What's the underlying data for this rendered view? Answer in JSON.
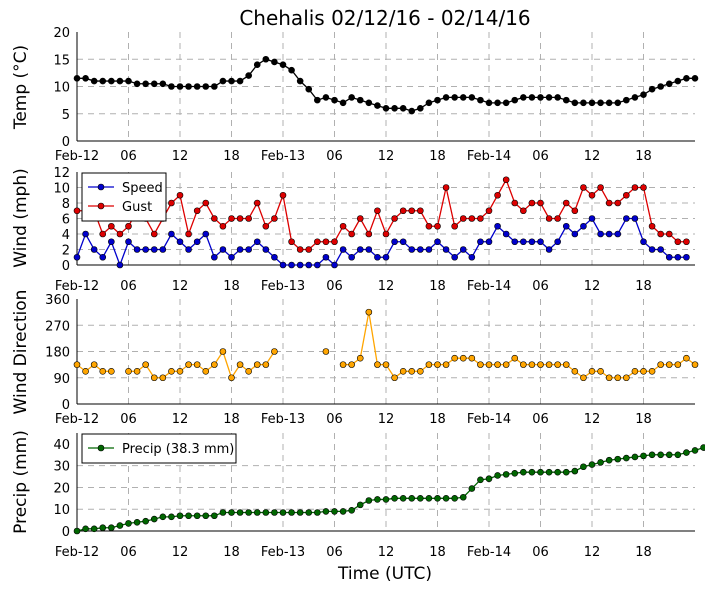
{
  "title": "Chehalis 02/12/16 - 02/14/16",
  "xlabel": "Time (UTC)",
  "x_tick_labels": [
    "Feb-12",
    "06",
    "12",
    "18",
    "Feb-13",
    "06",
    "12",
    "18",
    "Feb-14",
    "06",
    "12",
    "18"
  ],
  "chart_data": [
    {
      "type": "line",
      "ylabel": "Temp (°C)",
      "ylim": [
        0,
        20
      ],
      "yticks": [
        0,
        5,
        10,
        15,
        20
      ],
      "grid": true,
      "color": "#000000",
      "x_unit": "hours since Feb-12 00 UTC",
      "series": [
        {
          "values": [
            11.5,
            11.5,
            11,
            11,
            11,
            11,
            11,
            10.5,
            10.5,
            10.5,
            10.5,
            10,
            10,
            10,
            10,
            10,
            10,
            11,
            11,
            11,
            12,
            14,
            15,
            14.5,
            14,
            13,
            11,
            9.5,
            7.5,
            8,
            7.5,
            7,
            8,
            7.5,
            7,
            6.5,
            6,
            6,
            6,
            5.5,
            6,
            7,
            7.5,
            8,
            8,
            8,
            8,
            7.5,
            7,
            7,
            7,
            7.5,
            8,
            8,
            8,
            8,
            8,
            7.5,
            7,
            7,
            7,
            7,
            7,
            7,
            7.5,
            8,
            8.5,
            9.5,
            10,
            10.5,
            11,
            11.5,
            11.5
          ]
        }
      ]
    },
    {
      "type": "line",
      "ylabel": "Wind (mph)",
      "ylim": [
        0,
        12
      ],
      "yticks": [
        0,
        2,
        4,
        6,
        8,
        10,
        12
      ],
      "grid": true,
      "legend": "top-left",
      "series": [
        {
          "name": "Speed",
          "color": "#0000cc",
          "values": [
            1,
            4,
            2,
            1,
            3,
            0,
            3,
            2,
            2,
            2,
            2,
            4,
            3,
            2,
            3,
            4,
            1,
            2,
            1,
            2,
            2,
            3,
            2,
            1,
            0,
            0,
            0,
            0,
            0,
            1,
            0,
            2,
            1,
            2,
            2,
            1,
            1,
            3,
            3,
            2,
            2,
            2,
            3,
            2,
            1,
            2,
            1,
            3,
            3,
            5,
            4,
            3,
            3,
            3,
            3,
            2,
            3,
            5,
            4,
            5,
            6,
            4,
            4,
            4,
            6,
            6,
            3,
            2,
            2,
            1,
            1,
            1
          ]
        },
        {
          "name": "Gust",
          "color": "#dd0000",
          "values": [
            7,
            7,
            7,
            4,
            5,
            4,
            5,
            7,
            6,
            4,
            6,
            8,
            9,
            4,
            7,
            8,
            6,
            5,
            6,
            6,
            6,
            8,
            5,
            6,
            9,
            3,
            2,
            2,
            3,
            3,
            3,
            5,
            4,
            6,
            4,
            7,
            4,
            6,
            7,
            7,
            7,
            5,
            5,
            10,
            5,
            6,
            6,
            6,
            7,
            9,
            11,
            8,
            7,
            8,
            8,
            6,
            6,
            8,
            7,
            10,
            9,
            10,
            8,
            8,
            9,
            10,
            10,
            5,
            4,
            4,
            3,
            3
          ]
        }
      ]
    },
    {
      "type": "scatter",
      "ylabel": "Wind Direction",
      "ylim": [
        0,
        360
      ],
      "yticks": [
        0,
        90,
        180,
        270,
        360
      ],
      "grid": true,
      "color": "#ffa500",
      "series": [
        {
          "values": [
            135,
            112,
            135,
            112,
            112,
            null,
            112,
            112,
            135,
            90,
            90,
            112,
            112,
            135,
            135,
            112,
            135,
            180,
            90,
            135,
            112,
            135,
            135,
            180,
            null,
            null,
            null,
            null,
            null,
            180,
            null,
            135,
            135,
            157,
            315,
            135,
            135,
            90,
            112,
            112,
            112,
            135,
            135,
            135,
            157,
            157,
            157,
            135,
            135,
            135,
            135,
            157,
            135,
            135,
            135,
            135,
            135,
            135,
            112,
            90,
            112,
            112,
            90,
            90,
            90,
            112,
            112,
            112,
            135,
            135,
            135,
            157,
            135
          ]
        }
      ]
    },
    {
      "type": "line",
      "ylabel": "Precip (mm)",
      "ylim": [
        0,
        45
      ],
      "yticks": [
        0,
        10,
        20,
        30,
        40
      ],
      "grid": true,
      "legend": "top-left",
      "series": [
        {
          "name": "Precip (38.3 mm)",
          "color": "#006600",
          "values": [
            0,
            1,
            1,
            1.5,
            1.5,
            2.5,
            3.5,
            4,
            4.5,
            5.5,
            6.5,
            6.5,
            7,
            7,
            7,
            7,
            7,
            8.5,
            8.5,
            8.5,
            8.5,
            8.5,
            8.5,
            8.5,
            8.5,
            8.5,
            8.5,
            8.5,
            8.5,
            9,
            9,
            9,
            9.5,
            12,
            14,
            14.5,
            14.5,
            15,
            15,
            15,
            15,
            15,
            15,
            15,
            15,
            15.5,
            19.5,
            23.5,
            24,
            25.5,
            26,
            26.5,
            27,
            27,
            27,
            27,
            27,
            27,
            27.5,
            29.5,
            30.5,
            31.5,
            32.5,
            33,
            33.5,
            34,
            34.5,
            35,
            35,
            35,
            35,
            36,
            37,
            38.3
          ]
        }
      ]
    }
  ]
}
